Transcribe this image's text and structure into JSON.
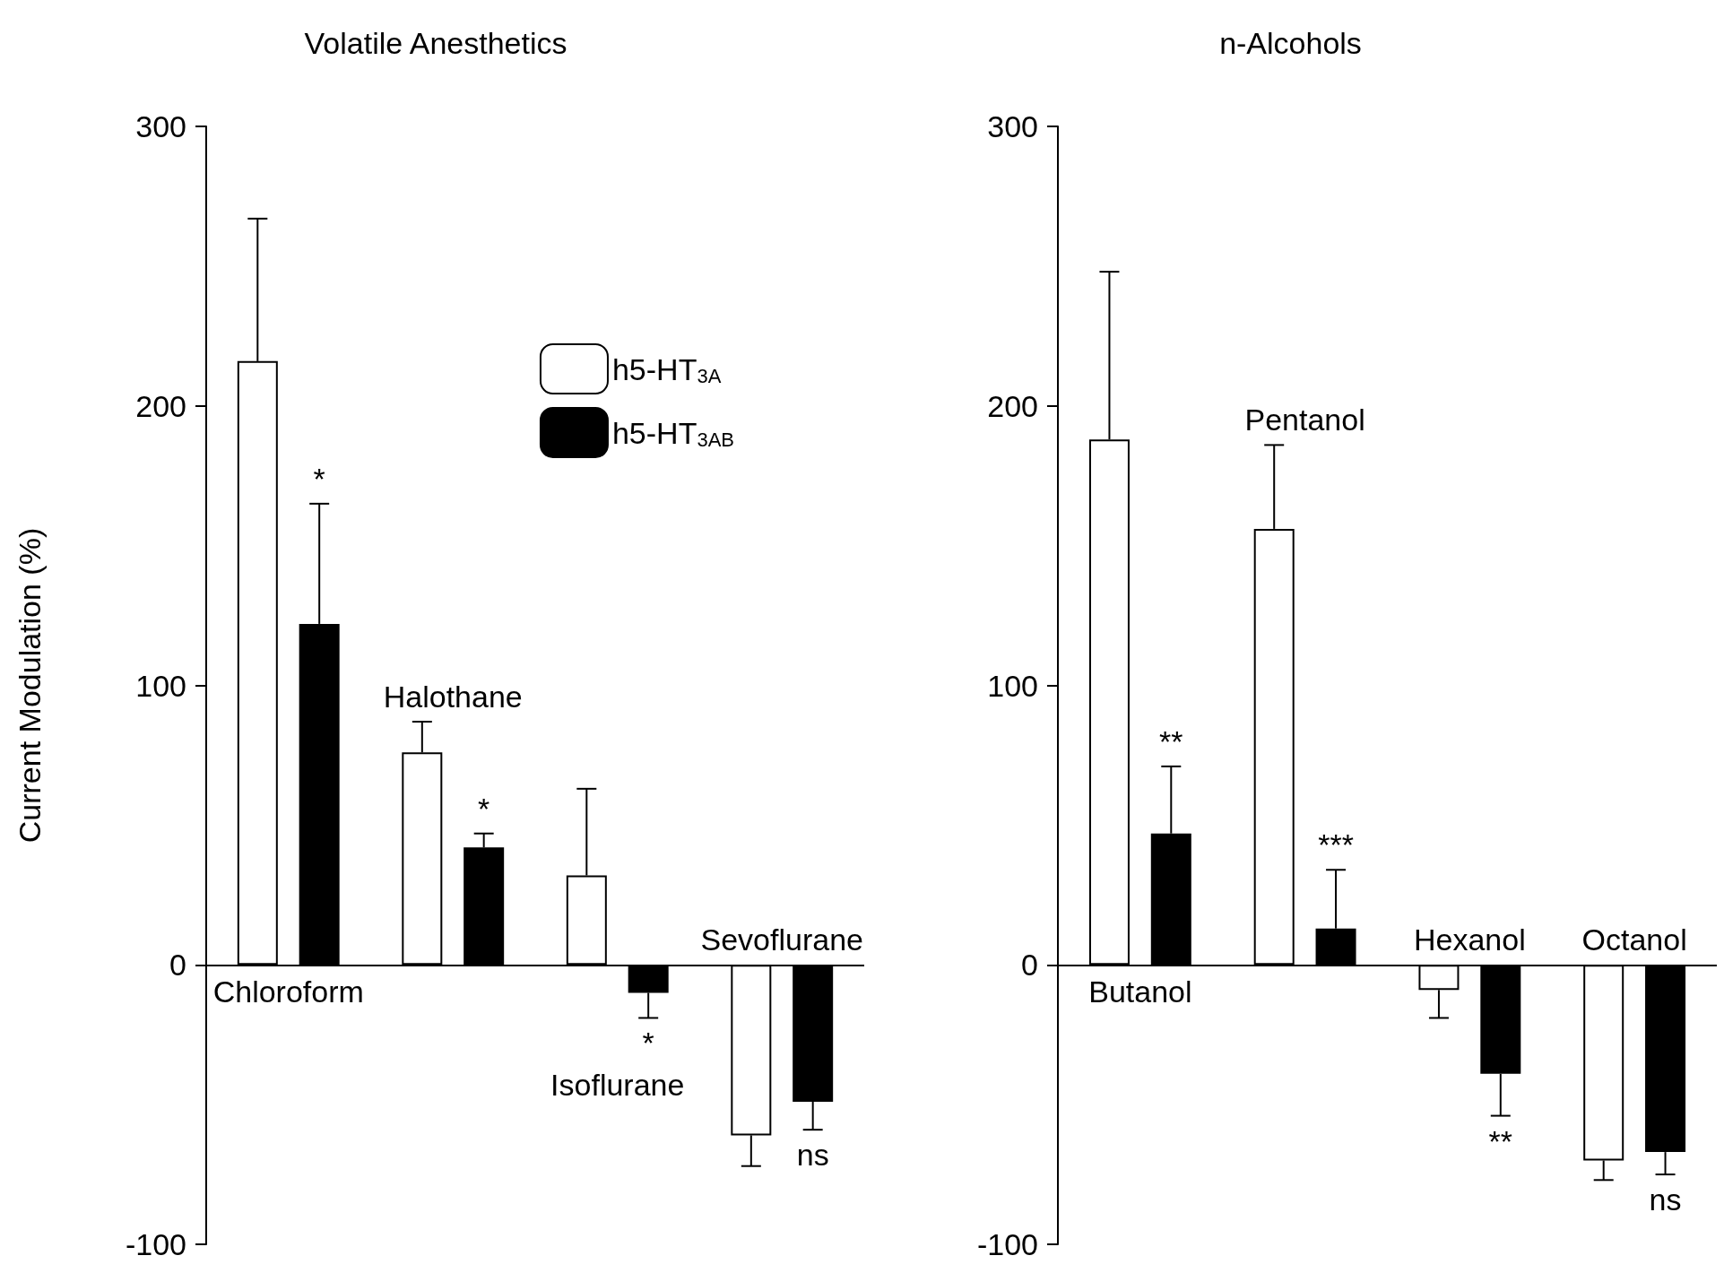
{
  "chart_data": [
    {
      "type": "bar",
      "title": "Volatile Anesthetics",
      "ylabel": "Current Modulation (%)",
      "categories": [
        "Chloroform",
        "Halothane",
        "Isoflurane",
        "Sevoflurane"
      ],
      "series": [
        {
          "name": "h5-HT$_{3A}$",
          "color": "#ffffff",
          "values": [
            216,
            76,
            32,
            -61
          ],
          "errors": [
            [
              216,
              267
            ],
            [
              76,
              87
            ],
            [
              32,
              63
            ],
            [
              -72,
              -61
            ]
          ]
        },
        {
          "name": "h5-HT$_{3AB}$",
          "color": "#000000",
          "values": [
            122,
            42,
            -10,
            -49
          ],
          "errors": [
            [
              122,
              165
            ],
            [
              42,
              47
            ],
            [
              -19,
              -10
            ],
            [
              -59,
              -49
            ]
          ]
        }
      ],
      "annotations": [
        "*",
        "*",
        "*",
        "ns"
      ],
      "ylim": [
        -100,
        300
      ],
      "yticks": [
        -100,
        0,
        100,
        200,
        300
      ],
      "legend": "top right"
    },
    {
      "type": "bar",
      "title": "n-Alcohols",
      "categories": [
        "Butanol",
        "Pentanol",
        "Hexanol",
        "Octanol"
      ],
      "series": [
        {
          "color": "#ffffff",
          "values": [
            188,
            156,
            -9,
            -70
          ],
          "errors": [
            [
              188,
              248
            ],
            [
              156,
              186
            ],
            [
              -19,
              -9
            ],
            [
              -77,
              -70
            ]
          ]
        },
        {
          "color": "#000000",
          "values": [
            47,
            13,
            -39,
            -67
          ],
          "errors": [
            [
              47,
              71
            ],
            [
              13,
              34
            ],
            [
              -54,
              -39
            ],
            [
              -75,
              -67
            ]
          ]
        }
      ],
      "annotations": [
        "**",
        "***",
        "**",
        "ns"
      ],
      "ylim": [
        -100,
        300
      ],
      "yticks": [
        -100,
        0,
        100,
        200,
        300
      ],
      "legend": false
    }
  ]
}
